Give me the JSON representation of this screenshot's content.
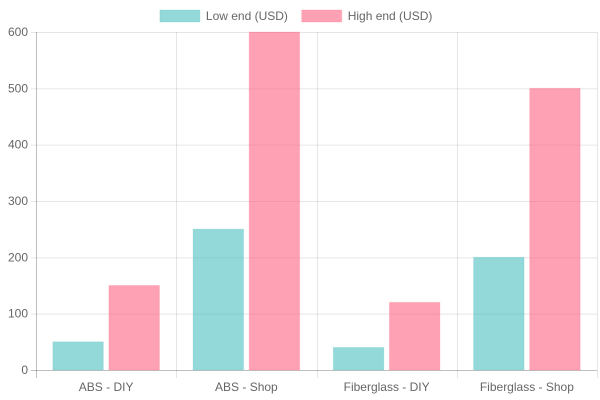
{
  "chart_data": {
    "type": "bar",
    "categories": [
      "ABS - DIY",
      "ABS - Shop",
      "Fiberglass - DIY",
      "Fiberglass - Shop"
    ],
    "series": [
      {
        "name": "Low end (USD)",
        "values": [
          50,
          250,
          40,
          200
        ],
        "color": "#4bc0c0"
      },
      {
        "name": "High end (USD)",
        "values": [
          150,
          600,
          120,
          500
        ],
        "color": "#ff6384"
      }
    ],
    "ylim": [
      0,
      600
    ],
    "yticks": [
      0,
      100,
      200,
      300,
      400,
      500,
      600
    ],
    "grid": true,
    "legend": "top-center",
    "title": "",
    "xlabel": "",
    "ylabel": ""
  }
}
